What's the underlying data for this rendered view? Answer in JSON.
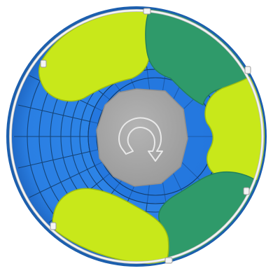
{
  "game": {
    "board": "circular-puzzle",
    "colors": {
      "background": "#ffffff",
      "disc": "#2a7fe3",
      "disc_inner": "#1f6fd8",
      "grid_lines": "#123a66",
      "rim": "#1c5fae",
      "lime": "#c8e81a",
      "lime_dark": "#aacb12",
      "green": "#2f9a6a",
      "green_dark": "#248456",
      "center": "#a9a9a9",
      "center_edge": "#8f8f8f",
      "rail": "#f2f2f2",
      "rail_shadow": "#b8b8b8"
    },
    "segments": [
      {
        "name": "lime-segment-top-left",
        "color": "lime"
      },
      {
        "name": "green-segment-top-right",
        "color": "green"
      },
      {
        "name": "lime-segment-right",
        "color": "lime"
      },
      {
        "name": "green-segment-bottom-right",
        "color": "green"
      },
      {
        "name": "lime-segment-bottom-left",
        "color": "lime"
      }
    ],
    "center_icon": "rotate-arrow-icon"
  }
}
